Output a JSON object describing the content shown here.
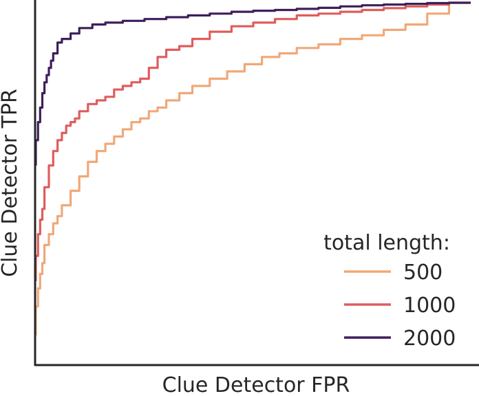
{
  "chart_data": {
    "type": "line",
    "title": "",
    "xlabel": "Clue Detector FPR",
    "ylabel": "Clue Detector TPR",
    "xlim": [
      0,
      1
    ],
    "ylim": [
      0,
      1
    ],
    "grid": false,
    "show_ticks": false,
    "legend": {
      "title": "total length:",
      "placement": "lower-right"
    },
    "series": [
      {
        "name": "500",
        "color": "#F0A878",
        "x": [
          0,
          0.005,
          0.01,
          0.015,
          0.02,
          0.03,
          0.04,
          0.05,
          0.06,
          0.08,
          0.1,
          0.12,
          0.14,
          0.16,
          0.18,
          0.2,
          0.22,
          0.24,
          0.26,
          0.28,
          0.3,
          0.33,
          0.36,
          0.4,
          0.44,
          0.48,
          0.52,
          0.56,
          0.6,
          0.65,
          0.7,
          0.75,
          0.8,
          0.85,
          0.9,
          0.95,
          1.0
        ],
        "y": [
          0.08,
          0.16,
          0.21,
          0.25,
          0.28,
          0.33,
          0.36,
          0.39,
          0.41,
          0.44,
          0.48,
          0.52,
          0.56,
          0.59,
          0.61,
          0.63,
          0.65,
          0.67,
          0.68,
          0.7,
          0.71,
          0.73,
          0.75,
          0.77,
          0.79,
          0.81,
          0.83,
          0.85,
          0.86,
          0.875,
          0.885,
          0.9,
          0.91,
          0.925,
          0.94,
          0.97,
          1.0
        ]
      },
      {
        "name": "1000",
        "color": "#E05C5C",
        "x": [
          0,
          0.005,
          0.01,
          0.015,
          0.02,
          0.03,
          0.04,
          0.05,
          0.06,
          0.07,
          0.08,
          0.09,
          0.1,
          0.12,
          0.14,
          0.16,
          0.18,
          0.2,
          0.22,
          0.24,
          0.26,
          0.28,
          0.3,
          0.33,
          0.36,
          0.4,
          0.45,
          0.5,
          0.55,
          0.6,
          0.65,
          0.7,
          0.75,
          0.8,
          0.85,
          0.9,
          0.95,
          1.0
        ],
        "y": [
          0.23,
          0.3,
          0.36,
          0.4,
          0.43,
          0.49,
          0.55,
          0.59,
          0.62,
          0.64,
          0.66,
          0.67,
          0.68,
          0.7,
          0.72,
          0.73,
          0.74,
          0.76,
          0.77,
          0.78,
          0.79,
          0.82,
          0.85,
          0.87,
          0.88,
          0.9,
          0.92,
          0.935,
          0.945,
          0.955,
          0.965,
          0.97,
          0.975,
          0.98,
          0.985,
          0.99,
          0.995,
          1.0
        ]
      },
      {
        "name": "2000",
        "color": "#3D1F5B",
        "x": [
          0,
          0.005,
          0.01,
          0.015,
          0.02,
          0.025,
          0.03,
          0.035,
          0.04,
          0.05,
          0.06,
          0.08,
          0.1,
          0.13,
          0.16,
          0.2,
          0.25,
          0.3,
          0.35,
          0.4,
          0.45,
          0.5,
          0.55,
          0.6,
          0.65,
          0.7,
          0.75,
          0.8,
          0.85,
          0.9,
          0.95,
          1.0
        ],
        "y": [
          0.55,
          0.62,
          0.67,
          0.71,
          0.75,
          0.78,
          0.8,
          0.82,
          0.84,
          0.86,
          0.89,
          0.9,
          0.915,
          0.93,
          0.94,
          0.945,
          0.95,
          0.955,
          0.96,
          0.965,
          0.97,
          0.975,
          0.978,
          0.98,
          0.983,
          0.986,
          0.99,
          0.993,
          0.995,
          0.997,
          0.999,
          1.0
        ]
      }
    ]
  }
}
